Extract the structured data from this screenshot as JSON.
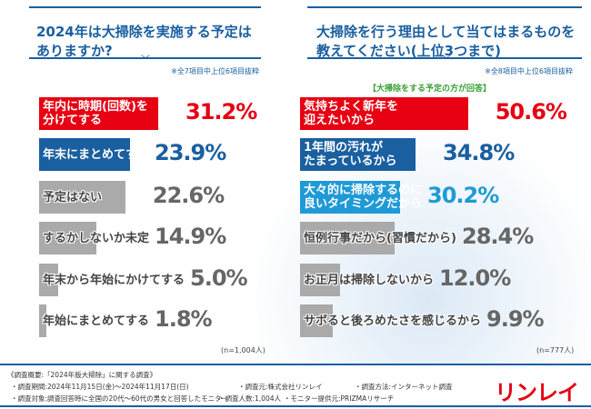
{
  "left": {
    "title_lines": [
      "2024年は大掃除を実施する予定は",
      "ありますか?"
    ],
    "note": "※全7項目中上位6項目抜粋",
    "n": "(n=1,004人)",
    "items": [
      {
        "label_lines": [
          "年内に時期(回数)を",
          "分けてする"
        ],
        "value": 31.2,
        "value_label": "31.2%",
        "color": "#e60012"
      },
      {
        "label_lines": [
          "年末にまとめてする"
        ],
        "value": 23.9,
        "value_label": "23.9%",
        "color": "#1a5fa0"
      },
      {
        "label_lines": [
          "予定はない"
        ],
        "value": 22.6,
        "value_label": "22.6%",
        "color": "#aaaaaa"
      },
      {
        "label_lines": [
          "するかしないか未定"
        ],
        "value": 14.9,
        "value_label": "14.9%",
        "color": "#aaaaaa"
      },
      {
        "label_lines": [
          "年末から年始にかけてする"
        ],
        "value": 5.0,
        "value_label": "5.0%",
        "color": "#aaaaaa"
      },
      {
        "label_lines": [
          "年始にまとめてする"
        ],
        "value": 1.8,
        "value_label": "1.8%",
        "color": "#aaaaaa"
      }
    ]
  },
  "right": {
    "title_lines": [
      "大掃除を行う理由として当てはまるものを",
      "教えてください(上位3つまで)"
    ],
    "note": "※全8項目中上位6項目抜粋",
    "subnote": "【大掃除をする予定の方が回答】",
    "n": "(n=777人)",
    "items": [
      {
        "label_lines": [
          "気持ちよく新年を",
          "迎えたいから"
        ],
        "value": 50.6,
        "value_label": "50.6%",
        "color": "#e60012"
      },
      {
        "label_lines": [
          "1年間の汚れが",
          "たまっているから"
        ],
        "value": 34.8,
        "value_label": "34.8%",
        "color": "#1a5fa0"
      },
      {
        "label_lines": [
          "大々的に掃除するのに",
          "良いタイミングだから"
        ],
        "value": 30.2,
        "value_label": "30.2%",
        "color": "#1f9ad6"
      },
      {
        "label_lines": [
          "恒例行事だから(習慣だから)"
        ],
        "value": 28.4,
        "value_label": "28.4%",
        "color": "#aaaaaa"
      },
      {
        "label_lines": [
          "お正月は掃除しないから"
        ],
        "value": 12.0,
        "value_label": "12.0%",
        "color": "#aaaaaa"
      },
      {
        "label_lines": [
          "サボると後ろめたさを感じるから"
        ],
        "value": 9.9,
        "value_label": "9.9%",
        "color": "#aaaaaa"
      }
    ]
  },
  "footer": {
    "heading": "《調査概要:「2024年版大掃除」に関する調査》",
    "lines": [
      "・調査期間:2024年11月15日(金)〜2024年11月17日(日)",
      "・調査元:株式会社リンレイ",
      "・調査方法:インターネット調査",
      "・調査対象:調査回答時に全国の20代〜60代の男女と回答したモニター",
      "・調査人数:1,004人",
      "・モニター提供元:PRIZMAリサーチ"
    ],
    "logo": "リンレイ"
  }
}
